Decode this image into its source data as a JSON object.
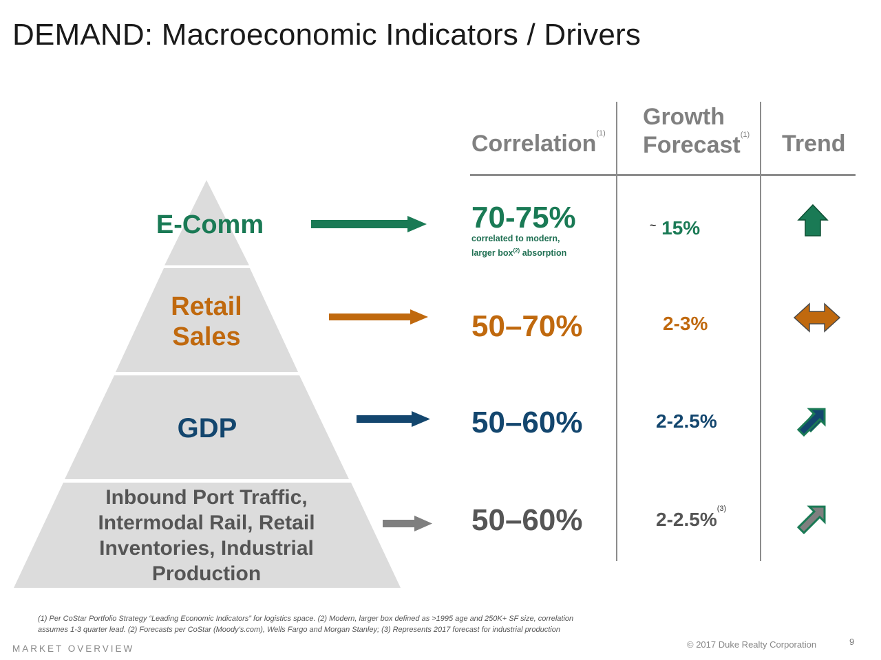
{
  "title": "DEMAND: Macroeconomic Indicators / Drivers",
  "headers": {
    "correlation": "Correlation",
    "correlation_ref": "(1)",
    "growth_line1": "Growth",
    "growth_line2": "Forecast",
    "growth_ref": "(1)",
    "trend": "Trend"
  },
  "rows": [
    {
      "tier_lines": [
        "E-Comm"
      ],
      "correlation": "70-75%",
      "note_line1": "correlated to modern,",
      "note_line2_a": "larger box",
      "note_line2_ref": "(2)",
      "note_line2_b": " absorption",
      "forecast": "15%",
      "forecast_prefix": "~",
      "forecast_ref": "",
      "trend_icon": "up-arrow-icon",
      "color": "#1a7a55"
    },
    {
      "tier_lines": [
        "Retail",
        "Sales"
      ],
      "correlation": "50–70%",
      "forecast": "2-3%",
      "forecast_ref": "",
      "trend_icon": "left-right-arrow-icon",
      "color": "#c0690e"
    },
    {
      "tier_lines": [
        "GDP"
      ],
      "correlation": "50–60%",
      "forecast": "2-2.5%",
      "forecast_ref": "",
      "trend_icon": "up-right-arrow-icon",
      "color": "#13466e"
    },
    {
      "tier_lines": [
        "Inbound Port Traffic,",
        "Intermodal Rail, Retail",
        "Inventories, Industrial",
        "Production"
      ],
      "correlation": "50–60%",
      "forecast": "2-2.5%",
      "forecast_ref": "(3)",
      "trend_icon": "up-right-arrow-icon",
      "color": "#555555"
    }
  ],
  "colors": {
    "pyramid_fill": "#dcdcdc",
    "ecomm": "#1a7a55",
    "retail": "#c0690e",
    "gdp": "#13466e",
    "gray_text": "#555555",
    "gray_arrow": "#7f7f7f",
    "grid": "#8c8c8c"
  },
  "footnote_line1": "(1) Per CoStar Portfolio Strategy “Leading Economic Indicators” for logistics space.  (2) Modern, larger box defined as >1995 age and 250K+ SF size, correlation",
  "footnote_line2": "assumes 1-3 quarter lead.  (2) Forecasts per CoStar (Moody’s.com), Wells Fargo and Morgan Stanley;  (3)  Represents 2017 forecast for industrial production",
  "section": "MARKET OVERVIEW",
  "copyright": "© 2017 Duke Realty Corporation",
  "page_number": "9"
}
